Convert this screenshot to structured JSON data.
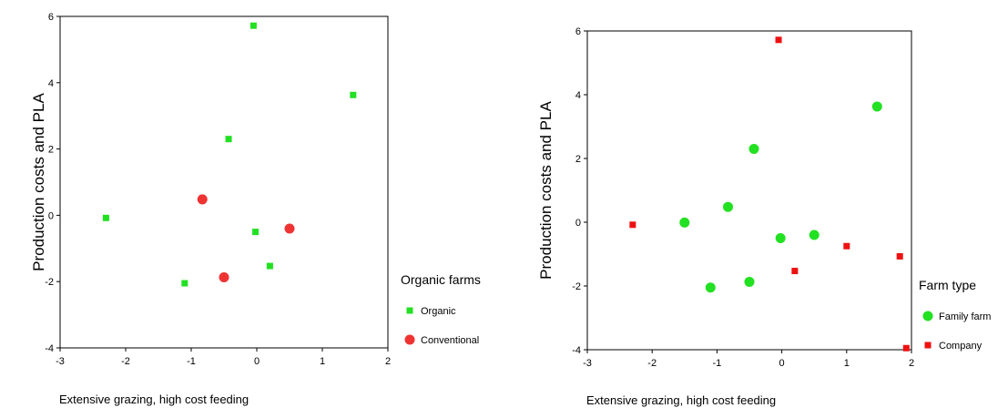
{
  "chart_data": [
    {
      "type": "scatter",
      "xlabel": "Extensive grazing, high cost feeding",
      "ylabel": "Production costs and PLA",
      "xlim": [
        -3,
        2
      ],
      "ylim": [
        -4,
        6
      ],
      "xticks": [
        "-3",
        "-2",
        "-1",
        "0",
        "1",
        "2"
      ],
      "yticks": [
        "-4",
        "-2",
        "0",
        "2",
        "4",
        "6"
      ],
      "grid": false,
      "legend": {
        "title": "Organic farms",
        "placement": "right",
        "entries": [
          {
            "label": "Organic",
            "marker": "square",
            "color": "#22e022"
          },
          {
            "label": "Conventional",
            "marker": "circle",
            "color": "#ee3333"
          }
        ]
      },
      "series": [
        {
          "name": "Organic",
          "marker": "square",
          "color": "#22e022",
          "points": [
            [
              -0.05,
              5.72
            ],
            [
              1.47,
              3.63
            ],
            [
              -0.43,
              2.3
            ],
            [
              -2.3,
              -0.08
            ],
            [
              -0.02,
              -0.5
            ],
            [
              0.2,
              -1.53
            ],
            [
              -1.1,
              -2.05
            ]
          ]
        },
        {
          "name": "Conventional",
          "marker": "circle",
          "color": "#ee3333",
          "points": [
            [
              -0.83,
              0.48
            ],
            [
              0.5,
              -0.4
            ],
            [
              -0.5,
              -1.87
            ]
          ]
        }
      ]
    },
    {
      "type": "scatter",
      "xlabel": "Extensive grazing, high cost feeding",
      "ylabel": "Production costs and PLA",
      "xlim": [
        -3,
        2
      ],
      "ylim": [
        -4,
        6
      ],
      "xticks": [
        "-3",
        "-2",
        "-1",
        "0",
        "1",
        "2"
      ],
      "yticks": [
        "-4",
        "-2",
        "0",
        "2",
        "4",
        "6"
      ],
      "grid": false,
      "legend": {
        "title": "Farm type",
        "placement": "right",
        "entries": [
          {
            "label": "Family farm",
            "marker": "circle",
            "color": "#22e022"
          },
          {
            "label": "Company",
            "marker": "square",
            "color": "#ee1111"
          }
        ]
      },
      "series": [
        {
          "name": "Family farm",
          "marker": "circle",
          "color": "#22e022",
          "points": [
            [
              1.47,
              3.63
            ],
            [
              -0.43,
              2.3
            ],
            [
              -1.5,
              -0.01
            ],
            [
              -0.83,
              0.48
            ],
            [
              -0.02,
              -0.5
            ],
            [
              0.5,
              -0.4
            ],
            [
              -0.5,
              -1.87
            ],
            [
              -1.1,
              -2.05
            ]
          ]
        },
        {
          "name": "Company",
          "marker": "square",
          "color": "#ee1111",
          "points": [
            [
              -0.05,
              5.72
            ],
            [
              -2.3,
              -0.08
            ],
            [
              0.2,
              -1.53
            ],
            [
              1.0,
              -0.75
            ],
            [
              1.82,
              -1.07
            ],
            [
              1.92,
              -3.95
            ]
          ]
        }
      ]
    }
  ]
}
